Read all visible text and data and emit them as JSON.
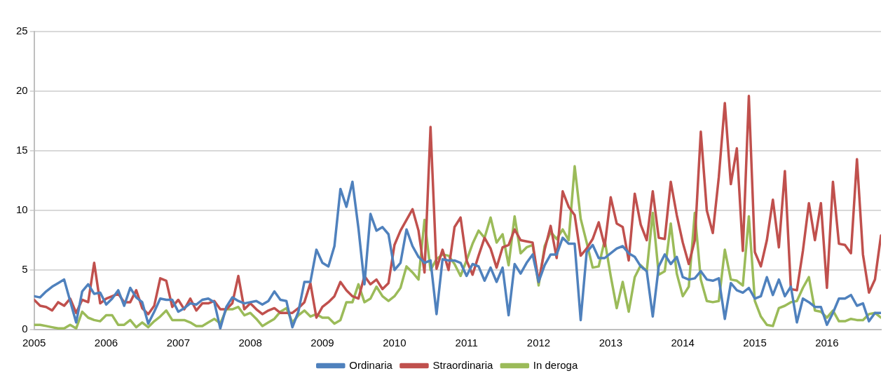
{
  "chart_data": {
    "type": "line",
    "x": [
      "2005-01",
      "2005-02",
      "2005-03",
      "2005-04",
      "2005-05",
      "2005-06",
      "2005-07",
      "2005-08",
      "2005-09",
      "2005-10",
      "2005-11",
      "2005-12",
      "2006-01",
      "2006-02",
      "2006-03",
      "2006-04",
      "2006-05",
      "2006-06",
      "2006-07",
      "2006-08",
      "2006-09",
      "2006-10",
      "2006-11",
      "2006-12",
      "2007-01",
      "2007-02",
      "2007-03",
      "2007-04",
      "2007-05",
      "2007-06",
      "2007-07",
      "2007-08",
      "2007-09",
      "2007-10",
      "2007-11",
      "2007-12",
      "2008-01",
      "2008-02",
      "2008-03",
      "2008-04",
      "2008-05",
      "2008-06",
      "2008-07",
      "2008-08",
      "2008-09",
      "2008-10",
      "2008-11",
      "2008-12",
      "2009-01",
      "2009-02",
      "2009-03",
      "2009-04",
      "2009-05",
      "2009-06",
      "2009-07",
      "2009-08",
      "2009-09",
      "2009-10",
      "2009-11",
      "2009-12",
      "2010-01",
      "2010-02",
      "2010-03",
      "2010-04",
      "2010-05",
      "2010-06",
      "2010-07",
      "2010-08",
      "2010-09",
      "2010-10",
      "2010-11",
      "2010-12",
      "2011-01",
      "2011-02",
      "2011-03",
      "2011-04",
      "2011-05",
      "2011-06",
      "2011-07",
      "2011-08",
      "2011-09",
      "2011-10",
      "2011-11",
      "2011-12",
      "2012-01",
      "2012-02",
      "2012-03",
      "2012-04",
      "2012-05",
      "2012-06",
      "2012-07",
      "2012-08",
      "2012-09",
      "2012-10",
      "2012-11",
      "2012-12",
      "2013-01",
      "2013-02",
      "2013-03",
      "2013-04",
      "2013-05",
      "2013-06",
      "2013-07",
      "2013-08",
      "2013-09",
      "2013-10",
      "2013-11",
      "2013-12",
      "2014-01",
      "2014-02",
      "2014-03",
      "2014-04",
      "2014-05",
      "2014-06",
      "2014-07",
      "2014-08",
      "2014-09",
      "2014-10",
      "2014-11",
      "2014-12",
      "2015-01",
      "2015-02",
      "2015-03",
      "2015-04",
      "2015-05",
      "2015-06",
      "2015-07",
      "2015-08",
      "2015-09",
      "2015-10",
      "2015-11",
      "2015-12",
      "2016-01",
      "2016-02",
      "2016-03",
      "2016-04",
      "2016-05",
      "2016-06",
      "2016-07",
      "2016-08",
      "2016-09",
      "2016-10"
    ],
    "series": [
      {
        "name": "Ordinaria",
        "color": "#4f81bd",
        "values": [
          2.8,
          2.7,
          3.2,
          3.6,
          3.9,
          4.2,
          2.4,
          0.6,
          3.2,
          3.8,
          3.0,
          3.1,
          2.1,
          2.6,
          3.3,
          2.0,
          3.5,
          2.7,
          2.3,
          0.5,
          1.5,
          2.6,
          2.5,
          2.5,
          1.5,
          1.8,
          2.2,
          2.1,
          2.5,
          2.6,
          2.3,
          0.1,
          1.9,
          2.7,
          2.4,
          2.2,
          2.3,
          2.4,
          2.1,
          2.4,
          3.2,
          2.5,
          2.4,
          0.2,
          1.5,
          4.0,
          4.0,
          6.7,
          5.6,
          5.3,
          7.0,
          11.8,
          10.3,
          12.4,
          8.5,
          3.8,
          9.7,
          8.3,
          8.6,
          8.0,
          5.0,
          5.6,
          8.4,
          7.0,
          6.1,
          5.6,
          5.8,
          1.3,
          5.9,
          5.8,
          5.8,
          5.6,
          4.5,
          5.5,
          5.3,
          4.1,
          5.2,
          4.0,
          5.2,
          1.2,
          5.5,
          4.7,
          5.6,
          6.3,
          4.0,
          5.4,
          6.3,
          6.3,
          7.7,
          7.2,
          7.2,
          0.8,
          6.5,
          7.1,
          6.0,
          6.0,
          6.4,
          6.8,
          7.0,
          6.4,
          6.1,
          5.3,
          4.9,
          1.1,
          5.3,
          6.3,
          5.5,
          6.1,
          4.4,
          4.2,
          4.3,
          4.9,
          4.2,
          4.1,
          4.3,
          0.9,
          3.9,
          3.3,
          3.1,
          3.5,
          2.6,
          2.8,
          4.4,
          2.9,
          4.2,
          2.8,
          3.6,
          0.6,
          2.6,
          2.3,
          1.9,
          1.9,
          0.4,
          1.4,
          2.6,
          2.6,
          2.9,
          2.0,
          2.2,
          0.7,
          1.4,
          1.4
        ]
      },
      {
        "name": "Straordinaria",
        "color": "#c0504d",
        "values": [
          2.5,
          2.0,
          1.9,
          1.6,
          2.3,
          2.0,
          2.6,
          1.4,
          2.5,
          2.3,
          5.6,
          2.2,
          2.6,
          2.8,
          3.0,
          2.3,
          2.3,
          3.3,
          1.8,
          1.3,
          2.0,
          4.3,
          4.1,
          1.9,
          2.5,
          1.7,
          2.6,
          1.6,
          2.2,
          2.2,
          2.4,
          1.7,
          1.7,
          2.2,
          4.5,
          1.7,
          2.2,
          1.7,
          1.3,
          1.6,
          1.8,
          1.4,
          1.4,
          1.4,
          1.8,
          2.3,
          3.9,
          1.0,
          1.9,
          2.3,
          2.8,
          4.0,
          3.3,
          2.8,
          2.6,
          4.5,
          3.8,
          4.2,
          3.4,
          3.9,
          7.1,
          8.3,
          9.2,
          10.1,
          8.3,
          4.8,
          17.0,
          5.1,
          6.7,
          5.0,
          8.6,
          9.4,
          5.8,
          4.6,
          6.2,
          7.7,
          6.8,
          5.2,
          6.9,
          7.1,
          8.4,
          7.5,
          7.4,
          7.3,
          4.0,
          6.7,
          8.7,
          6.0,
          11.6,
          10.3,
          9.6,
          6.2,
          6.8,
          7.6,
          9.0,
          7.0,
          11.1,
          8.9,
          8.6,
          5.8,
          11.4,
          8.8,
          7.5,
          11.6,
          7.7,
          7.6,
          12.4,
          9.6,
          7.3,
          5.5,
          7.5,
          16.6,
          10.0,
          8.1,
          12.8,
          19.0,
          12.2,
          15.2,
          6.6,
          19.6,
          6.5,
          5.3,
          7.5,
          10.9,
          6.9,
          13.3,
          3.4,
          3.3,
          6.6,
          10.6,
          7.5,
          10.6,
          3.5,
          12.4,
          7.2,
          7.1,
          6.4,
          14.3,
          6.3,
          3.1,
          4.2,
          7.9
        ]
      },
      {
        "name": "In deroga",
        "color": "#9bbb59",
        "values": [
          0.4,
          0.4,
          0.3,
          0.2,
          0.1,
          0.1,
          0.4,
          0.1,
          1.5,
          1.0,
          0.8,
          0.7,
          1.2,
          1.2,
          0.4,
          0.4,
          0.8,
          0.2,
          0.6,
          0.2,
          0.7,
          1.1,
          1.6,
          0.8,
          0.8,
          0.8,
          0.6,
          0.3,
          0.3,
          0.6,
          0.9,
          0.5,
          1.7,
          1.7,
          1.9,
          1.2,
          1.4,
          0.9,
          0.3,
          0.6,
          0.9,
          1.5,
          1.8,
          0.6,
          1.2,
          1.6,
          1.1,
          1.3,
          1.0,
          1.0,
          0.5,
          0.8,
          2.3,
          2.3,
          3.8,
          2.3,
          2.6,
          3.6,
          2.8,
          2.4,
          2.8,
          3.5,
          5.3,
          4.8,
          4.2,
          9.2,
          5.0,
          5.9,
          6.3,
          6.2,
          5.5,
          4.5,
          5.8,
          7.2,
          8.3,
          7.7,
          9.4,
          7.3,
          8.0,
          5.4,
          9.5,
          6.4,
          6.9,
          7.1,
          3.7,
          7.0,
          8.2,
          7.6,
          8.4,
          7.5,
          13.7,
          9.3,
          7.3,
          5.2,
          5.3,
          7.5,
          4.5,
          1.8,
          4.0,
          1.5,
          4.4,
          5.4,
          4.9,
          9.8,
          4.6,
          4.9,
          8.9,
          4.7,
          2.8,
          3.6,
          9.8,
          4.2,
          2.4,
          2.3,
          2.4,
          6.7,
          4.2,
          4.1,
          3.7,
          9.5,
          2.4,
          1.1,
          0.4,
          0.3,
          1.8,
          2.0,
          2.3,
          2.4,
          3.5,
          4.4,
          1.6,
          1.5,
          1.0,
          1.6,
          0.7,
          0.7,
          0.9,
          0.8,
          0.8,
          1.3,
          1.4,
          1.0
        ]
      }
    ],
    "xlim": [
      "2005-01",
      "2016-10"
    ],
    "xticks": [
      "2005",
      "2006",
      "2007",
      "2008",
      "2009",
      "2010",
      "2011",
      "2012",
      "2013",
      "2014",
      "2015",
      "2016"
    ],
    "ylim": [
      0,
      25
    ],
    "yticks": [
      0,
      5,
      10,
      15,
      20,
      25
    ],
    "grid": "y",
    "legend": "bottom",
    "marker": "none",
    "line_style": "solid"
  }
}
